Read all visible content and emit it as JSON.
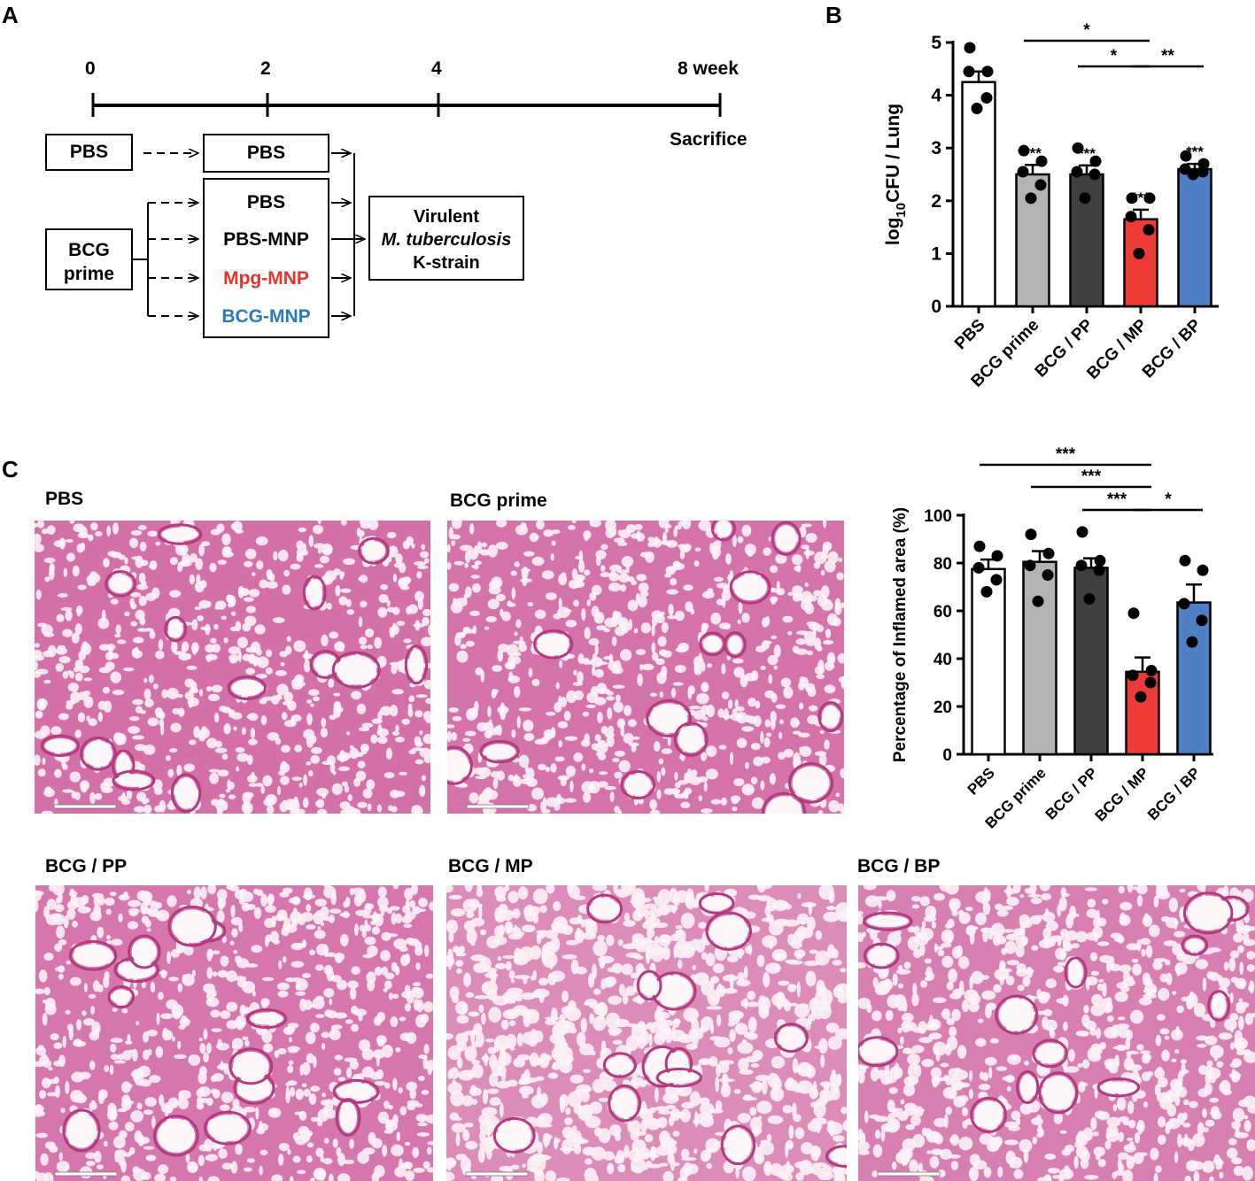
{
  "panels": {
    "a": "A",
    "b": "B",
    "c": "C"
  },
  "colors": {
    "PBS": "#ffffff",
    "BCG prime": "#b3b3b3",
    "BCG / PP": "#404040",
    "BCG / MP": "#ee3b36",
    "BCG / BP": "#4f80c5",
    "mpg_text": "#e8312a",
    "bcg_text": "#2a7abf",
    "tissue_bg": "#f3dfea",
    "tissue_fg": "#c84c92"
  },
  "timeline": {
    "ticks": [
      "0",
      "2",
      "4",
      "8 week"
    ],
    "sacrifice": "Sacrifice",
    "boxes": {
      "pbs_left": "PBS",
      "bcg_prime_line1": "BCG",
      "bcg_prime_line2": "prime",
      "pbs_top": "PBS",
      "group_pbs": "PBS",
      "group_pbs_mnp": "PBS-MNP",
      "group_mpg_mnp": "Mpg-MNP",
      "group_bcg_mnp": "BCG-MNP",
      "challenge_line1": "Virulent",
      "challenge_line2": "M. tuberculosis",
      "challenge_line3": "K-strain"
    }
  },
  "photos": {
    "pbs": "PBS",
    "bcg_prime": "BCG prime",
    "bcg_pp": "BCG / PP",
    "bcg_mp": "BCG / MP",
    "bcg_bp": "BCG / BP"
  },
  "chart_data": [
    {
      "type": "bar",
      "panel": "B",
      "ylabel_prefix": "log",
      "ylabel_sub": "10",
      "ylabel_suffix": "CFU / Lung",
      "ylim": [
        0,
        5
      ],
      "yticks": [
        0,
        1,
        2,
        3,
        4,
        5
      ],
      "categories": [
        "PBS",
        "BCG prime",
        "BCG / PP",
        "BCG / MP",
        "BCG / BP"
      ],
      "values": [
        4.25,
        2.5,
        2.5,
        1.65,
        2.6
      ],
      "errors": [
        0.2,
        0.18,
        0.17,
        0.18,
        0.1
      ],
      "points": [
        [
          4.9,
          4.45,
          4.45,
          3.95,
          3.75
        ],
        [
          2.95,
          2.75,
          2.55,
          2.3,
          2.05
        ],
        [
          3.0,
          2.75,
          2.55,
          2.5,
          2.05
        ],
        [
          2.05,
          2.05,
          1.7,
          1.45,
          1.0
        ],
        [
          2.85,
          2.7,
          2.6,
          2.55,
          2.5
        ]
      ],
      "significance_above_bars": [
        "",
        "***",
        "***",
        "***",
        "***"
      ],
      "brackets": [
        {
          "from": 1,
          "to": 3,
          "label": "*"
        },
        {
          "from": 2,
          "to": 3,
          "label": "*"
        },
        {
          "from": 3,
          "to": 4,
          "label": "**"
        }
      ]
    },
    {
      "type": "bar",
      "panel": "C",
      "ylabel": "Percentage of Inflamed area (%)",
      "ylim": [
        0,
        100
      ],
      "yticks": [
        0,
        20,
        40,
        60,
        80,
        100
      ],
      "categories": [
        "PBS",
        "BCG prime",
        "BCG / PP",
        "BCG / MP",
        "BCG / BP"
      ],
      "values": [
        77.5,
        80.5,
        78,
        34.5,
        63.5
      ],
      "errors": [
        4.0,
        4.5,
        4.0,
        6.0,
        7.5
      ],
      "points": [
        [
          87,
          83,
          78,
          73,
          68
        ],
        [
          92,
          84,
          79,
          75,
          64
        ],
        [
          93,
          81,
          79,
          77,
          65
        ],
        [
          59,
          35,
          33,
          30,
          24
        ],
        [
          81,
          77,
          63,
          56,
          47
        ]
      ],
      "brackets": [
        {
          "from": 0,
          "to": 3,
          "label": "***"
        },
        {
          "from": 1,
          "to": 3,
          "label": "***"
        },
        {
          "from": 2,
          "to": 3,
          "label": "***"
        },
        {
          "from": 3,
          "to": 4,
          "label": "*"
        }
      ]
    }
  ]
}
